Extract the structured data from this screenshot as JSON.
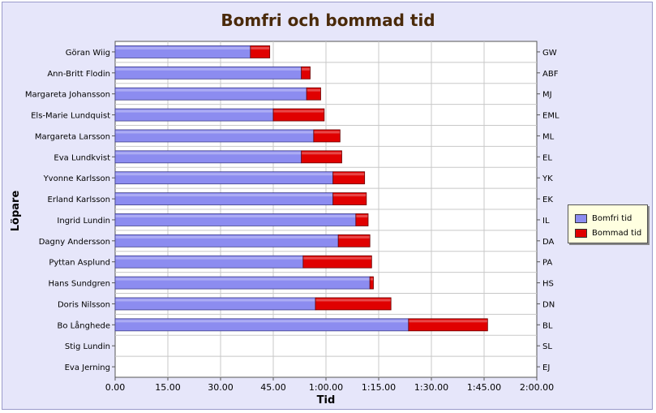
{
  "chart_data": {
    "type": "bar",
    "orientation": "horizontal",
    "stacked": true,
    "title": "Bomfri och bommad tid",
    "xlabel": "Tid",
    "ylabel": "Löpare",
    "xlim_minutes": [
      0,
      120
    ],
    "x_tick_labels": [
      "0.00",
      "15.00",
      "30.00",
      "45.00",
      "1:00.00",
      "1:15.00",
      "1:30.00",
      "1:45.00",
      "2:00.00"
    ],
    "grid": true,
    "legend_position": "right",
    "categories": [
      "Göran Wiig",
      "Ann-Britt Flodin",
      "Margareta Johansson",
      "Els-Marie Lundquist",
      "Margareta Larsson",
      "Eva Lundkvist",
      "Yvonne Karlsson",
      "Erland Karlsson",
      "Ingrid Lundin",
      "Dagny Andersson",
      "Pyttan Asplund",
      "Hans Sundgren",
      "Doris Nilsson",
      "Bo Långhede",
      "Stig Lundin",
      "Eva Jerning"
    ],
    "right_labels": [
      "GW",
      "ABF",
      "MJ",
      "EML",
      "ML",
      "EL",
      "YK",
      "EK",
      "IL",
      "DA",
      "PA",
      "HS",
      "DN",
      "BL",
      "SL",
      "EJ"
    ],
    "series": [
      {
        "name": "Bomfri tid",
        "color": "#8c8cf0",
        "values": [
          38.5,
          53,
          54.5,
          45,
          56.5,
          53,
          62,
          62,
          68.5,
          63.5,
          53.5,
          72.5,
          57,
          83.5,
          0,
          0
        ]
      },
      {
        "name": "Bommad tid",
        "color": "#e00000",
        "values": [
          5.5,
          2.5,
          4,
          14.5,
          7.5,
          11.5,
          9,
          9.5,
          3.5,
          9,
          19.5,
          1,
          21.5,
          22.5,
          0,
          0
        ]
      }
    ]
  }
}
